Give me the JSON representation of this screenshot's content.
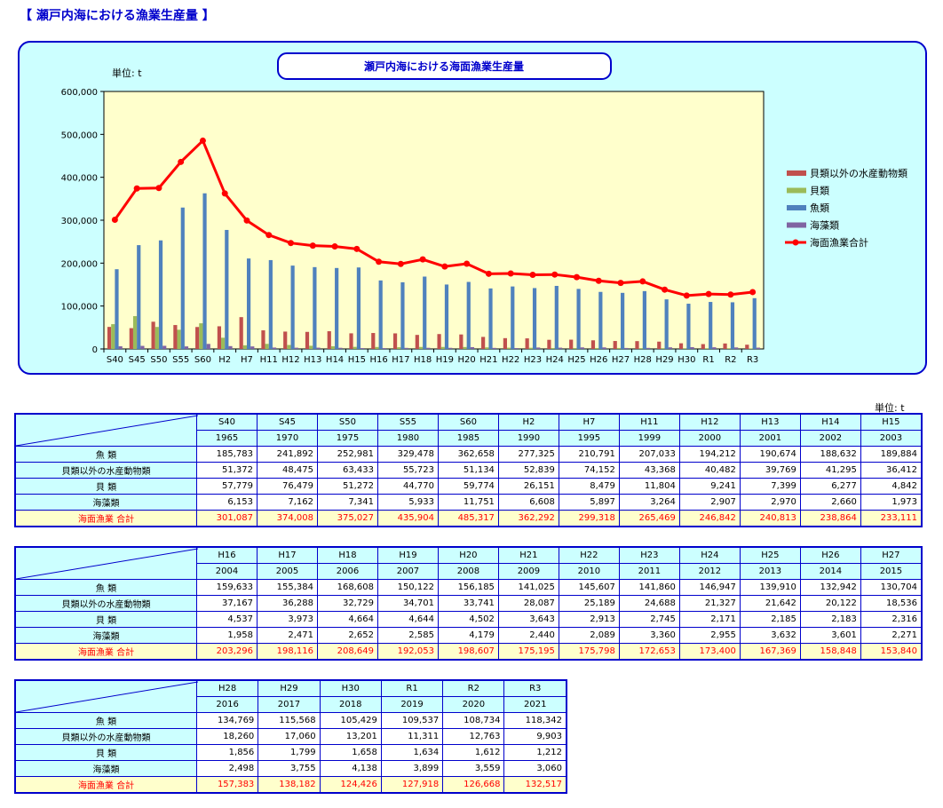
{
  "page": {
    "title": "【 瀬戸内海における漁業生産量 】"
  },
  "chart_data": {
    "type": "bar",
    "title": "瀬戸内海における海面漁業生産量",
    "unit_label": "単位: t",
    "ylim": [
      0,
      600000
    ],
    "yticks": [
      "0",
      "100,000",
      "200,000",
      "300,000",
      "400,000",
      "500,000",
      "600,000"
    ],
    "categories": [
      "S40",
      "S45",
      "S50",
      "S55",
      "S60",
      "H2",
      "H7",
      "H11",
      "H12",
      "H13",
      "H14",
      "H15",
      "H16",
      "H17",
      "H18",
      "H19",
      "H20",
      "H21",
      "H22",
      "H23",
      "H24",
      "H25",
      "H26",
      "H27",
      "H28",
      "H29",
      "H30",
      "R1",
      "R2",
      "R3"
    ],
    "series": [
      {
        "name": "貝類以外の水産動物類",
        "type": "bar",
        "color": "#c0504d",
        "values": [
          51372,
          48475,
          63433,
          55723,
          51134,
          52839,
          74152,
          43368,
          40482,
          39769,
          41295,
          36412,
          37167,
          36288,
          32729,
          34701,
          33741,
          28087,
          25189,
          24688,
          21327,
          21642,
          20122,
          18536,
          18260,
          17060,
          13201,
          11311,
          12763,
          9903
        ]
      },
      {
        "name": "貝類",
        "type": "bar",
        "color": "#9bbb59",
        "values": [
          57779,
          76479,
          51272,
          44770,
          59774,
          26151,
          8479,
          11804,
          9241,
          7399,
          6277,
          4842,
          4537,
          3973,
          4664,
          4644,
          4502,
          3643,
          2913,
          2745,
          2171,
          2185,
          2183,
          2316,
          1856,
          1799,
          1658,
          1634,
          1612,
          1212
        ]
      },
      {
        "name": "魚類",
        "type": "bar",
        "color": "#4f81bd",
        "values": [
          185783,
          241892,
          252981,
          329478,
          362658,
          277325,
          210791,
          207033,
          194212,
          190674,
          188632,
          189884,
          159633,
          155384,
          168608,
          150122,
          156185,
          141025,
          145607,
          141860,
          146947,
          139910,
          132942,
          130704,
          134769,
          115568,
          105429,
          109537,
          108734,
          118342
        ]
      },
      {
        "name": "海藻類",
        "type": "bar",
        "color": "#8064a2",
        "values": [
          6153,
          7162,
          7341,
          5933,
          11751,
          6608,
          5897,
          3264,
          2907,
          2970,
          2660,
          1973,
          1958,
          2471,
          2652,
          2585,
          4179,
          2440,
          2089,
          3360,
          2955,
          3632,
          3601,
          2271,
          2498,
          3755,
          4138,
          3899,
          3559,
          3060
        ]
      },
      {
        "name": "海面漁業合計",
        "type": "line",
        "color": "#ff0000",
        "values": [
          301087,
          374008,
          375027,
          435904,
          485317,
          362292,
          299318,
          265469,
          246842,
          240813,
          238864,
          233111,
          203296,
          198116,
          208649,
          192053,
          198607,
          175195,
          175798,
          172653,
          173400,
          167369,
          158848,
          153840,
          157383,
          138182,
          124426,
          127918,
          126668,
          132517
        ]
      }
    ],
    "legend_position": "right"
  },
  "table": {
    "unit_label": "単位: t",
    "row_labels": [
      "魚 類",
      "貝類以外の水産動物類",
      "貝 類",
      "海藻類",
      "海面漁業  合計"
    ],
    "blocks": [
      {
        "codes": [
          "S40",
          "S45",
          "S50",
          "S55",
          "S60",
          "H2",
          "H7",
          "H11",
          "H12",
          "H13",
          "H14",
          "H15"
        ],
        "years": [
          "1965",
          "1970",
          "1975",
          "1980",
          "1985",
          "1990",
          "1995",
          "1999",
          "2000",
          "2001",
          "2002",
          "2003"
        ],
        "rows": [
          [
            "185,783",
            "241,892",
            "252,981",
            "329,478",
            "362,658",
            "277,325",
            "210,791",
            "207,033",
            "194,212",
            "190,674",
            "188,632",
            "189,884"
          ],
          [
            "51,372",
            "48,475",
            "63,433",
            "55,723",
            "51,134",
            "52,839",
            "74,152",
            "43,368",
            "40,482",
            "39,769",
            "41,295",
            "36,412"
          ],
          [
            "57,779",
            "76,479",
            "51,272",
            "44,770",
            "59,774",
            "26,151",
            "8,479",
            "11,804",
            "9,241",
            "7,399",
            "6,277",
            "4,842"
          ],
          [
            "6,153",
            "7,162",
            "7,341",
            "5,933",
            "11,751",
            "6,608",
            "5,897",
            "3,264",
            "2,907",
            "2,970",
            "2,660",
            "1,973"
          ],
          [
            "301,087",
            "374,008",
            "375,027",
            "435,904",
            "485,317",
            "362,292",
            "299,318",
            "265,469",
            "246,842",
            "240,813",
            "238,864",
            "233,111"
          ]
        ]
      },
      {
        "codes": [
          "H16",
          "H17",
          "H18",
          "H19",
          "H20",
          "H21",
          "H22",
          "H23",
          "H24",
          "H25",
          "H26",
          "H27"
        ],
        "years": [
          "2004",
          "2005",
          "2006",
          "2007",
          "2008",
          "2009",
          "2010",
          "2011",
          "2012",
          "2013",
          "2014",
          "2015"
        ],
        "rows": [
          [
            "159,633",
            "155,384",
            "168,608",
            "150,122",
            "156,185",
            "141,025",
            "145,607",
            "141,860",
            "146,947",
            "139,910",
            "132,942",
            "130,704"
          ],
          [
            "37,167",
            "36,288",
            "32,729",
            "34,701",
            "33,741",
            "28,087",
            "25,189",
            "24,688",
            "21,327",
            "21,642",
            "20,122",
            "18,536"
          ],
          [
            "4,537",
            "3,973",
            "4,664",
            "4,644",
            "4,502",
            "3,643",
            "2,913",
            "2,745",
            "2,171",
            "2,185",
            "2,183",
            "2,316"
          ],
          [
            "1,958",
            "2,471",
            "2,652",
            "2,585",
            "4,179",
            "2,440",
            "2,089",
            "3,360",
            "2,955",
            "3,632",
            "3,601",
            "2,271"
          ],
          [
            "203,296",
            "198,116",
            "208,649",
            "192,053",
            "198,607",
            "175,195",
            "175,798",
            "172,653",
            "173,400",
            "167,369",
            "158,848",
            "153,840"
          ]
        ]
      },
      {
        "codes": [
          "H28",
          "H29",
          "H30",
          "R1",
          "R2",
          "R3"
        ],
        "years": [
          "2016",
          "2017",
          "2018",
          "2019",
          "2020",
          "2021"
        ],
        "rows": [
          [
            "134,769",
            "115,568",
            "105,429",
            "109,537",
            "108,734",
            "118,342"
          ],
          [
            "18,260",
            "17,060",
            "13,201",
            "11,311",
            "12,763",
            "9,903"
          ],
          [
            "1,856",
            "1,799",
            "1,658",
            "1,634",
            "1,612",
            "1,212"
          ],
          [
            "2,498",
            "3,755",
            "4,138",
            "3,899",
            "3,559",
            "3,060"
          ],
          [
            "157,383",
            "138,182",
            "124,426",
            "127,918",
            "126,668",
            "132,517"
          ]
        ]
      }
    ]
  }
}
